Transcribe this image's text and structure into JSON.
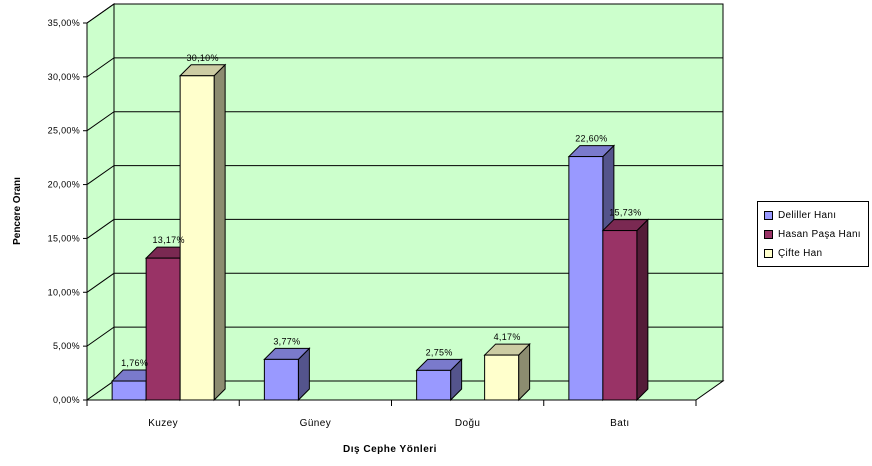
{
  "chart_data": {
    "type": "bar",
    "title": "",
    "xlabel": "Dış Cephe Yönleri",
    "ylabel": "Pencere Oranı",
    "ylim": [
      0,
      35
    ],
    "yticks": [
      "0,00%",
      "5,00%",
      "10,00%",
      "15,00%",
      "20,00%",
      "25,00%",
      "30,00%",
      "35,00%"
    ],
    "categories": [
      "Kuzey",
      "Güney",
      "Doğu",
      "Batı"
    ],
    "grid": true,
    "legend_position": "right",
    "series": [
      {
        "name": "Deliller Hanı",
        "color": "#9999ff",
        "values": [
          1.76,
          3.77,
          2.75,
          22.6
        ],
        "labels": [
          "1,76%",
          "3,77%",
          "2,75%",
          "22,60%"
        ]
      },
      {
        "name": "Hasan Paşa Hanı",
        "color": "#993366",
        "values": [
          13.17,
          null,
          null,
          15.73
        ],
        "labels": [
          "13,17%",
          null,
          null,
          "15,73%"
        ]
      },
      {
        "name": "Çifte Han",
        "color": "#ffffcc",
        "values": [
          30.1,
          null,
          4.17,
          null
        ],
        "labels": [
          "30,10%",
          null,
          "4,17%",
          null
        ]
      }
    ]
  }
}
